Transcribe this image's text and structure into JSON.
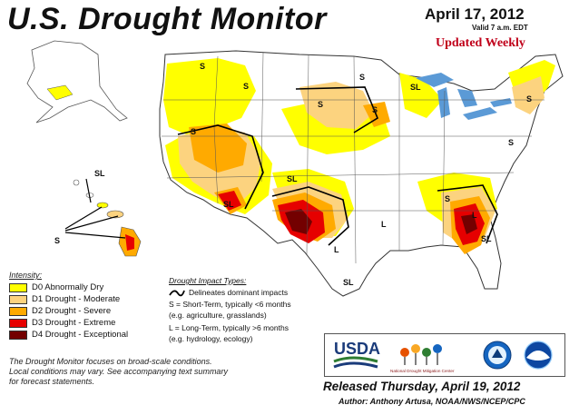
{
  "header": {
    "title": "U.S. Drought Monitor",
    "date": "April 17, 2012",
    "valid": "Valid 7 a.m. EDT",
    "updated": "Updated Weekly"
  },
  "legend": {
    "title": "Intensity:",
    "items": [
      {
        "label": "D0 Abnormally Dry",
        "color": "#ffff00"
      },
      {
        "label": "D1 Drought - Moderate",
        "color": "#fcd37f"
      },
      {
        "label": "D2 Drought - Severe",
        "color": "#ffaa00"
      },
      {
        "label": "D3 Drought - Extreme",
        "color": "#e60000"
      },
      {
        "label": "D4 Drought - Exceptional",
        "color": "#730000"
      }
    ]
  },
  "impact": {
    "title": "Drought Impact Types:",
    "delineates": "Delineates dominant impacts",
    "short_term": "S = Short-Term, typically <6 months",
    "short_term_eg": "(e.g. agriculture, grasslands)",
    "long_term": "L = Long-Term, typically >6 months",
    "long_term_eg": "(e.g. hydrology, ecology)"
  },
  "footnote": {
    "line1": "The Drought Monitor focuses on broad-scale conditions.",
    "line2": "Local conditions may vary. See accompanying text summary",
    "line3": "for forecast statements."
  },
  "logos": {
    "usda": "USDA",
    "ndmc": "National Drought Mitigation Center"
  },
  "footer": {
    "released": "Released Thursday, April 19, 2012",
    "author": "Author: Anthony Artusa, NOAA/NWS/NCEP/CPC"
  },
  "map_labels": {
    "s": "S",
    "l": "L",
    "sl": "SL"
  },
  "colors": {
    "water": "#7fb2e5",
    "lakes": "#5b9ad6",
    "land": "#ffffff"
  }
}
